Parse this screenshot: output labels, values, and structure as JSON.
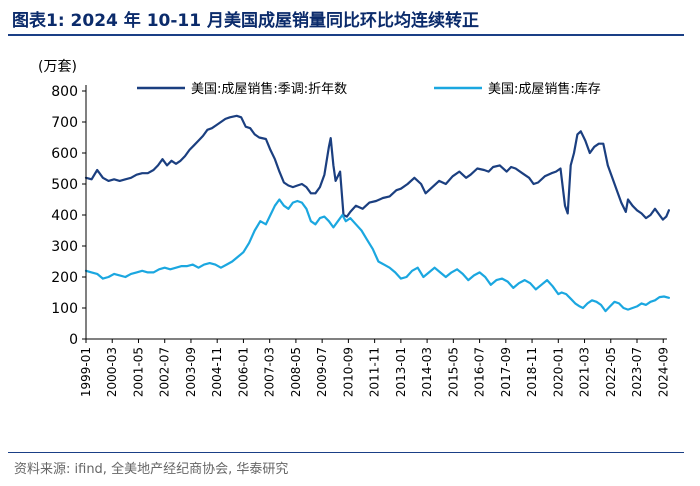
{
  "page": {
    "title": "图表1:  2024 年 10-11 月美国成屋销量同比环比均连续转正",
    "source": "资料来源:   ifind, 全美地产经纪商协会, 华泰研究"
  },
  "chart_data": {
    "type": "line",
    "ylabel": "(万套)",
    "ylim": [
      0,
      800
    ],
    "yticks": [
      "0",
      "100",
      "200",
      "300",
      "400",
      "500",
      "600",
      "700",
      "800"
    ],
    "xlim": [
      "1999-01",
      "2024-11"
    ],
    "xticks": [
      "1999-01",
      "2000-03",
      "2001-05",
      "2002-07",
      "2003-09",
      "2004-11",
      "2006-01",
      "2007-03",
      "2008-05",
      "2009-07",
      "2010-09",
      "2011-11",
      "2013-01",
      "2014-03",
      "2015-05",
      "2016-07",
      "2017-09",
      "2018-11",
      "2020-01",
      "2021-03",
      "2022-05",
      "2023-07",
      "2024-09"
    ],
    "legend": "top",
    "series": [
      {
        "name": "美国:成屋销售:季调:折年数",
        "color": "#1b3f80",
        "points": [
          [
            1999.0,
            520
          ],
          [
            1999.25,
            515
          ],
          [
            1999.5,
            545
          ],
          [
            1999.75,
            520
          ],
          [
            2000.0,
            510
          ],
          [
            2000.25,
            515
          ],
          [
            2000.5,
            510
          ],
          [
            2000.75,
            515
          ],
          [
            2001.0,
            520
          ],
          [
            2001.25,
            530
          ],
          [
            2001.5,
            535
          ],
          [
            2001.75,
            535
          ],
          [
            2002.0,
            545
          ],
          [
            2002.2,
            560
          ],
          [
            2002.4,
            580
          ],
          [
            2002.6,
            560
          ],
          [
            2002.8,
            575
          ],
          [
            2003.0,
            565
          ],
          [
            2003.2,
            575
          ],
          [
            2003.4,
            590
          ],
          [
            2003.6,
            610
          ],
          [
            2003.8,
            625
          ],
          [
            2004.0,
            640
          ],
          [
            2004.2,
            655
          ],
          [
            2004.4,
            675
          ],
          [
            2004.6,
            680
          ],
          [
            2004.8,
            690
          ],
          [
            2005.0,
            700
          ],
          [
            2005.2,
            710
          ],
          [
            2005.4,
            715
          ],
          [
            2005.7,
            720
          ],
          [
            2005.9,
            715
          ],
          [
            2006.1,
            685
          ],
          [
            2006.3,
            680
          ],
          [
            2006.5,
            660
          ],
          [
            2006.7,
            650
          ],
          [
            2007.0,
            645
          ],
          [
            2007.2,
            610
          ],
          [
            2007.4,
            580
          ],
          [
            2007.6,
            540
          ],
          [
            2007.8,
            505
          ],
          [
            2008.0,
            495
          ],
          [
            2008.2,
            490
          ],
          [
            2008.4,
            495
          ],
          [
            2008.6,
            500
          ],
          [
            2008.8,
            490
          ],
          [
            2009.0,
            470
          ],
          [
            2009.2,
            470
          ],
          [
            2009.4,
            490
          ],
          [
            2009.6,
            530
          ],
          [
            2009.8,
            620
          ],
          [
            2009.88,
            648
          ],
          [
            2010.0,
            560
          ],
          [
            2010.1,
            510
          ],
          [
            2010.3,
            540
          ],
          [
            2010.45,
            400
          ],
          [
            2010.6,
            395
          ],
          [
            2010.75,
            410
          ],
          [
            2011.0,
            430
          ],
          [
            2011.3,
            420
          ],
          [
            2011.6,
            440
          ],
          [
            2011.9,
            445
          ],
          [
            2012.2,
            455
          ],
          [
            2012.5,
            460
          ],
          [
            2012.8,
            480
          ],
          [
            2013.0,
            485
          ],
          [
            2013.3,
            500
          ],
          [
            2013.6,
            520
          ],
          [
            2013.9,
            500
          ],
          [
            2014.1,
            470
          ],
          [
            2014.4,
            490
          ],
          [
            2014.7,
            510
          ],
          [
            2015.0,
            500
          ],
          [
            2015.3,
            525
          ],
          [
            2015.6,
            540
          ],
          [
            2015.9,
            520
          ],
          [
            2016.1,
            530
          ],
          [
            2016.4,
            550
          ],
          [
            2016.7,
            545
          ],
          [
            2016.9,
            540
          ],
          [
            2017.1,
            555
          ],
          [
            2017.4,
            560
          ],
          [
            2017.7,
            540
          ],
          [
            2017.9,
            555
          ],
          [
            2018.1,
            550
          ],
          [
            2018.4,
            535
          ],
          [
            2018.7,
            520
          ],
          [
            2018.9,
            500
          ],
          [
            2019.1,
            505
          ],
          [
            2019.4,
            525
          ],
          [
            2019.7,
            535
          ],
          [
            2019.9,
            540
          ],
          [
            2020.1,
            550
          ],
          [
            2020.3,
            430
          ],
          [
            2020.42,
            405
          ],
          [
            2020.55,
            560
          ],
          [
            2020.7,
            600
          ],
          [
            2020.85,
            660
          ],
          [
            2021.0,
            670
          ],
          [
            2021.2,
            640
          ],
          [
            2021.4,
            600
          ],
          [
            2021.6,
            620
          ],
          [
            2021.8,
            630
          ],
          [
            2022.0,
            630
          ],
          [
            2022.2,
            560
          ],
          [
            2022.4,
            520
          ],
          [
            2022.6,
            480
          ],
          [
            2022.8,
            440
          ],
          [
            2023.0,
            410
          ],
          [
            2023.1,
            450
          ],
          [
            2023.3,
            430
          ],
          [
            2023.5,
            415
          ],
          [
            2023.7,
            405
          ],
          [
            2023.9,
            390
          ],
          [
            2024.1,
            400
          ],
          [
            2024.3,
            420
          ],
          [
            2024.5,
            400
          ],
          [
            2024.65,
            385
          ],
          [
            2024.8,
            395
          ],
          [
            2024.92,
            415
          ]
        ]
      },
      {
        "name": "美国:成屋销售:库存",
        "color": "#1ba7e0",
        "points": [
          [
            1999.0,
            220
          ],
          [
            1999.25,
            215
          ],
          [
            1999.5,
            210
          ],
          [
            1999.75,
            195
          ],
          [
            2000.0,
            200
          ],
          [
            2000.25,
            210
          ],
          [
            2000.5,
            205
          ],
          [
            2000.75,
            200
          ],
          [
            2001.0,
            210
          ],
          [
            2001.25,
            215
          ],
          [
            2001.5,
            220
          ],
          [
            2001.75,
            215
          ],
          [
            2002.0,
            215
          ],
          [
            2002.25,
            225
          ],
          [
            2002.5,
            230
          ],
          [
            2002.75,
            225
          ],
          [
            2003.0,
            230
          ],
          [
            2003.25,
            235
          ],
          [
            2003.5,
            235
          ],
          [
            2003.75,
            240
          ],
          [
            2004.0,
            230
          ],
          [
            2004.25,
            240
          ],
          [
            2004.5,
            245
          ],
          [
            2004.75,
            240
          ],
          [
            2005.0,
            230
          ],
          [
            2005.25,
            240
          ],
          [
            2005.5,
            250
          ],
          [
            2005.75,
            265
          ],
          [
            2006.0,
            280
          ],
          [
            2006.25,
            310
          ],
          [
            2006.5,
            350
          ],
          [
            2006.75,
            380
          ],
          [
            2007.0,
            370
          ],
          [
            2007.2,
            400
          ],
          [
            2007.4,
            430
          ],
          [
            2007.6,
            450
          ],
          [
            2007.8,
            430
          ],
          [
            2008.0,
            420
          ],
          [
            2008.2,
            440
          ],
          [
            2008.4,
            445
          ],
          [
            2008.6,
            440
          ],
          [
            2008.8,
            420
          ],
          [
            2009.0,
            380
          ],
          [
            2009.2,
            370
          ],
          [
            2009.4,
            390
          ],
          [
            2009.6,
            395
          ],
          [
            2009.8,
            380
          ],
          [
            2010.0,
            360
          ],
          [
            2010.2,
            380
          ],
          [
            2010.4,
            400
          ],
          [
            2010.55,
            380
          ],
          [
            2010.75,
            390
          ],
          [
            2011.0,
            370
          ],
          [
            2011.25,
            350
          ],
          [
            2011.5,
            320
          ],
          [
            2011.75,
            290
          ],
          [
            2012.0,
            250
          ],
          [
            2012.25,
            240
          ],
          [
            2012.5,
            230
          ],
          [
            2012.75,
            215
          ],
          [
            2013.0,
            195
          ],
          [
            2013.25,
            200
          ],
          [
            2013.5,
            220
          ],
          [
            2013.75,
            230
          ],
          [
            2014.0,
            200
          ],
          [
            2014.25,
            215
          ],
          [
            2014.5,
            230
          ],
          [
            2014.75,
            215
          ],
          [
            2015.0,
            200
          ],
          [
            2015.25,
            215
          ],
          [
            2015.5,
            225
          ],
          [
            2015.75,
            210
          ],
          [
            2016.0,
            190
          ],
          [
            2016.25,
            205
          ],
          [
            2016.5,
            215
          ],
          [
            2016.75,
            200
          ],
          [
            2017.0,
            175
          ],
          [
            2017.25,
            190
          ],
          [
            2017.5,
            195
          ],
          [
            2017.75,
            185
          ],
          [
            2018.0,
            165
          ],
          [
            2018.25,
            180
          ],
          [
            2018.5,
            190
          ],
          [
            2018.75,
            180
          ],
          [
            2019.0,
            160
          ],
          [
            2019.25,
            175
          ],
          [
            2019.5,
            190
          ],
          [
            2019.75,
            170
          ],
          [
            2020.0,
            145
          ],
          [
            2020.15,
            150
          ],
          [
            2020.35,
            145
          ],
          [
            2020.55,
            130
          ],
          [
            2020.75,
            115
          ],
          [
            2020.95,
            105
          ],
          [
            2021.1,
            100
          ],
          [
            2021.3,
            115
          ],
          [
            2021.5,
            125
          ],
          [
            2021.7,
            120
          ],
          [
            2021.9,
            110
          ],
          [
            2022.1,
            90
          ],
          [
            2022.3,
            105
          ],
          [
            2022.5,
            120
          ],
          [
            2022.7,
            115
          ],
          [
            2022.9,
            100
          ],
          [
            2023.1,
            95
          ],
          [
            2023.3,
            100
          ],
          [
            2023.5,
            105
          ],
          [
            2023.7,
            115
          ],
          [
            2023.9,
            110
          ],
          [
            2024.1,
            120
          ],
          [
            2024.3,
            125
          ],
          [
            2024.5,
            135
          ],
          [
            2024.7,
            137
          ],
          [
            2024.92,
            133
          ]
        ]
      }
    ]
  }
}
